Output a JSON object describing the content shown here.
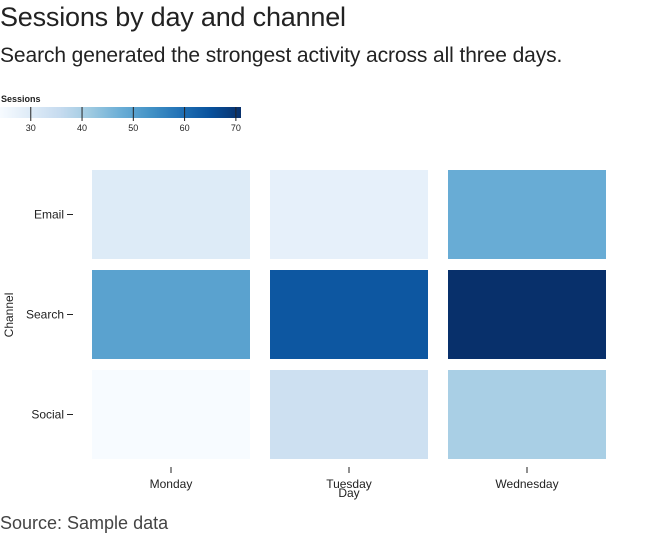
{
  "header": {
    "title": "Sessions by day and channel",
    "subtitle": "Search generated the strongest activity across all three days."
  },
  "footer": {
    "source": "Source: Sample data"
  },
  "chart_data": {
    "type": "heatmap",
    "x": [
      "Monday",
      "Tuesday",
      "Wednesday"
    ],
    "y": [
      "Email",
      "Search",
      "Social"
    ],
    "xlabel": "Day",
    "ylabel": "Channel",
    "values": [
      [
        30,
        28,
        48
      ],
      [
        50,
        64,
        71
      ],
      [
        24,
        34,
        40
      ]
    ],
    "color_scale": {
      "title": "Sessions",
      "domain": [
        24,
        71
      ],
      "ticks": [
        30,
        40,
        50,
        60,
        70
      ],
      "colors": [
        "#f7fbff",
        "#deebf7",
        "#c6dbef",
        "#9ecae1",
        "#6baed6",
        "#4292c6",
        "#2171b5",
        "#08519c",
        "#08306b"
      ]
    },
    "legend_position": "top-left",
    "grid": false
  }
}
